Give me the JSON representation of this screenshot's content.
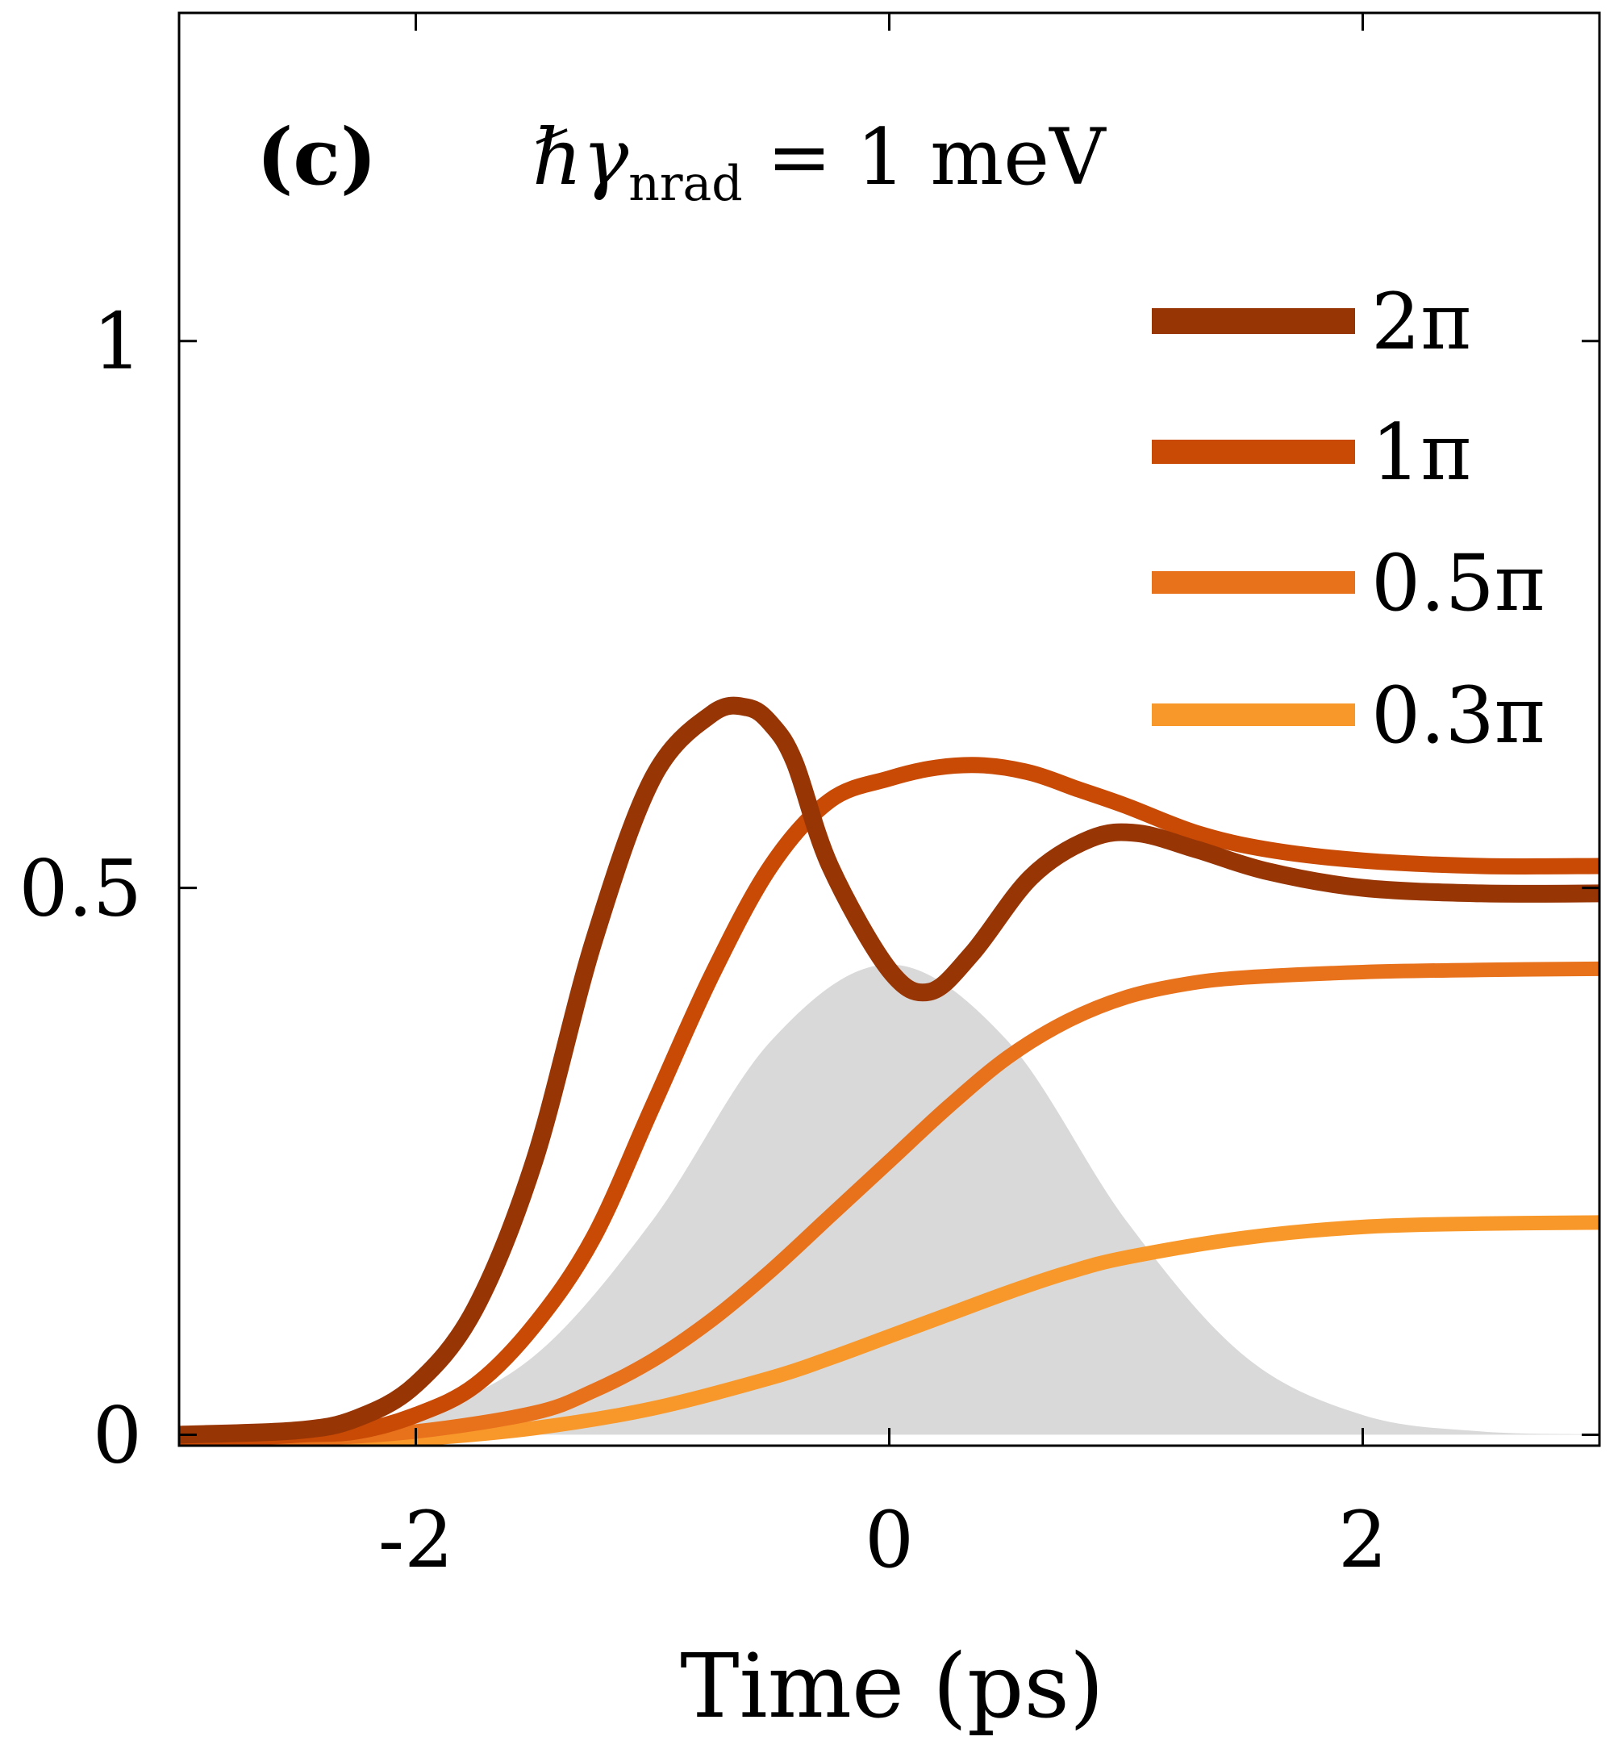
{
  "chart_data": {
    "type": "line",
    "panel_label": "(c)",
    "annotation": {
      "symbol": "ℏγ",
      "subscript": "nrad",
      "value": "= 1 meV"
    },
    "xlabel": "Time (ps)",
    "ylabel": "",
    "xlim": [
      -3,
      3
    ],
    "ylim": [
      -0.01,
      1.3
    ],
    "x_ticks": [
      -2,
      0,
      2
    ],
    "x_tick_labels": [
      "-2",
      "0",
      "2"
    ],
    "y_ticks": [
      0,
      0.5,
      1
    ],
    "y_tick_labels": [
      "0",
      "0.5",
      "1"
    ],
    "grid": false,
    "legend_position": "top-right",
    "pulse_envelope": {
      "name": "pulse",
      "color": "#d9d9d9",
      "x": [
        -3.0,
        -2.5,
        -2.0,
        -1.5,
        -1.0,
        -0.5,
        0.0,
        0.5,
        1.0,
        1.5,
        2.0,
        2.5,
        3.0
      ],
      "values": [
        0.0003,
        0.003,
        0.018,
        0.072,
        0.196,
        0.36,
        0.43,
        0.36,
        0.196,
        0.072,
        0.018,
        0.003,
        0.0003
      ]
    },
    "series": [
      {
        "name": "2π",
        "color": "#983505",
        "width": 22,
        "x": [
          -3.0,
          -2.5,
          -2.25,
          -2.0,
          -1.75,
          -1.5,
          -1.25,
          -1.0,
          -0.75,
          -0.6,
          -0.5,
          -0.4,
          -0.25,
          0.0,
          0.17,
          0.35,
          0.6,
          0.85,
          1.05,
          1.3,
          1.6,
          2.0,
          2.5,
          3.0
        ],
        "values": [
          0.0,
          0.004,
          0.015,
          0.046,
          0.115,
          0.25,
          0.45,
          0.6,
          0.659,
          0.665,
          0.65,
          0.615,
          0.52,
          0.425,
          0.405,
          0.44,
          0.51,
          0.545,
          0.55,
          0.535,
          0.515,
          0.5,
          0.495,
          0.495
        ]
      },
      {
        "name": "1π",
        "color": "#c94a05",
        "width": 20,
        "x": [
          -3.0,
          -2.5,
          -2.25,
          -2.0,
          -1.75,
          -1.5,
          -1.25,
          -1.0,
          -0.75,
          -0.5,
          -0.25,
          0.0,
          0.2,
          0.4,
          0.6,
          0.8,
          1.0,
          1.3,
          1.6,
          2.0,
          2.5,
          3.0
        ],
        "values": [
          -0.007,
          0.0,
          0.003,
          0.018,
          0.045,
          0.1,
          0.18,
          0.3,
          0.42,
          0.52,
          0.58,
          0.6,
          0.61,
          0.612,
          0.605,
          0.59,
          0.575,
          0.55,
          0.535,
          0.525,
          0.52,
          0.52
        ]
      },
      {
        "name": "0.5π",
        "color": "#e8711c",
        "width": 18,
        "x": [
          -3.0,
          -2.5,
          -2.0,
          -1.5,
          -1.25,
          -1.0,
          -0.75,
          -0.5,
          -0.25,
          0.0,
          0.25,
          0.5,
          0.75,
          1.0,
          1.25,
          1.5,
          2.0,
          2.5,
          3.0
        ],
        "values": [
          -0.007,
          -0.004,
          0.003,
          0.02,
          0.04,
          0.068,
          0.105,
          0.15,
          0.2,
          0.25,
          0.3,
          0.345,
          0.378,
          0.4,
          0.412,
          0.418,
          0.423,
          0.425,
          0.426
        ]
      },
      {
        "name": "0.3π",
        "color": "#f8982a",
        "width": 18,
        "x": [
          -3.0,
          -2.5,
          -2.0,
          -1.5,
          -1.0,
          -0.5,
          -0.25,
          0.0,
          0.25,
          0.5,
          0.75,
          1.0,
          1.5,
          2.0,
          2.5,
          3.0
        ],
        "values": [
          -0.01,
          -0.009,
          -0.004,
          0.006,
          0.024,
          0.052,
          0.07,
          0.09,
          0.11,
          0.13,
          0.148,
          0.162,
          0.18,
          0.19,
          0.193,
          0.194
        ]
      }
    ]
  }
}
